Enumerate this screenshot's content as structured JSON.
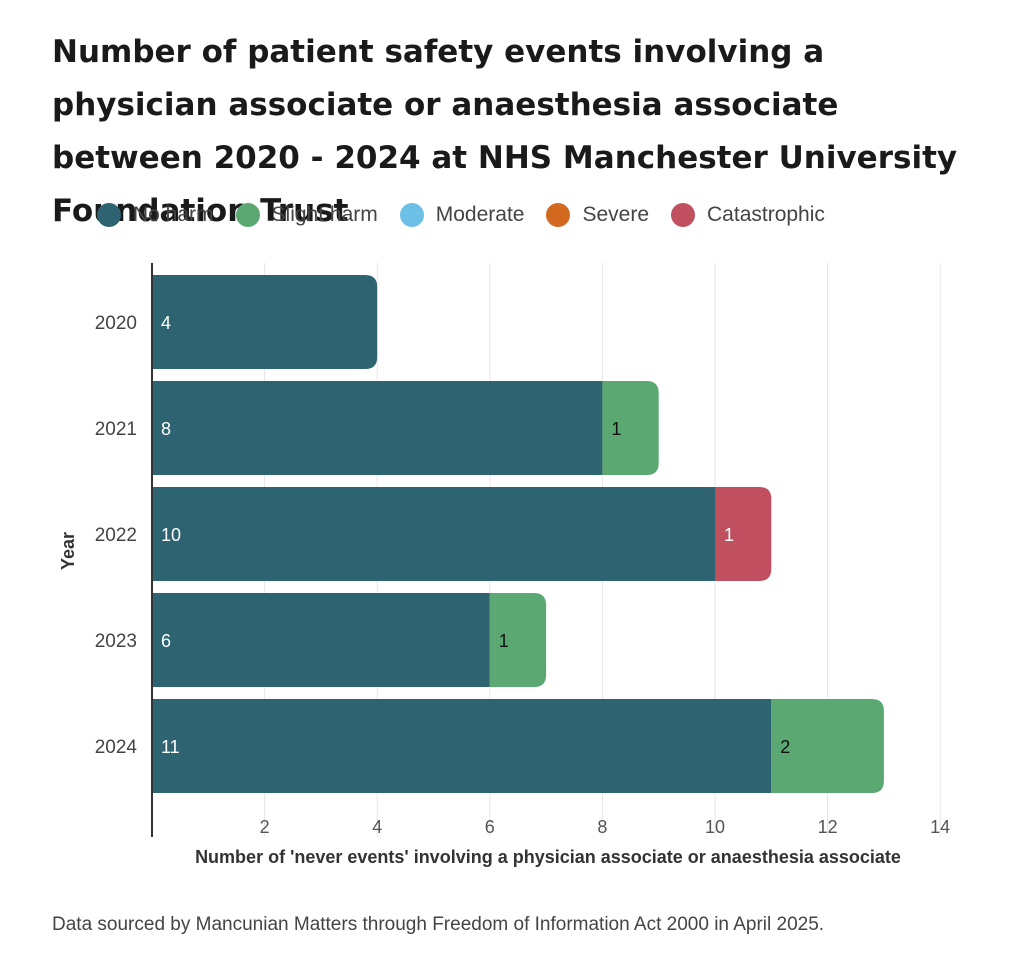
{
  "title": "Number of patient safety events involving a physician associate or anaesthesia associate between 2020 - 2024 at NHS Manchester University Foundation Trust",
  "source": "Data sourced by Mancunian Matters through Freedom of Information Act 2000 in April 2025.",
  "legend": [
    {
      "name": "No harm",
      "color": "#2e6471"
    },
    {
      "name": "Slight harm",
      "color": "#5ba873"
    },
    {
      "name": "Moderate",
      "color": "#6cc0e5"
    },
    {
      "name": "Severe",
      "color": "#d2691e"
    },
    {
      "name": "Catastrophic",
      "color": "#c05060"
    }
  ],
  "chart_data": {
    "type": "bar",
    "orientation": "horizontal",
    "stacked": true,
    "categories": [
      "2020",
      "2021",
      "2022",
      "2023",
      "2024"
    ],
    "series": [
      {
        "name": "No harm",
        "color": "#2e6471",
        "values": [
          4,
          8,
          10,
          6,
          11
        ]
      },
      {
        "name": "Slight harm",
        "color": "#5ba873",
        "values": [
          0,
          1,
          0,
          1,
          2
        ]
      },
      {
        "name": "Moderate",
        "color": "#6cc0e5",
        "values": [
          0,
          0,
          0,
          0,
          0
        ]
      },
      {
        "name": "Severe",
        "color": "#d2691e",
        "values": [
          0,
          0,
          0,
          0,
          0
        ]
      },
      {
        "name": "Catastrophic",
        "color": "#c05060",
        "values": [
          0,
          0,
          1,
          0,
          0
        ]
      }
    ],
    "xlabel": "Number of 'never events' involving a physician associate or anaesthesia associate",
    "ylabel": "Year",
    "xlim": [
      0,
      14
    ],
    "xticks": [
      2,
      4,
      6,
      8,
      10,
      12,
      14
    ],
    "grid": true,
    "legend_position": "top"
  }
}
